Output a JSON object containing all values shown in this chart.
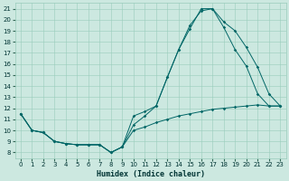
{
  "xlabel": "Humidex (Indice chaleur)",
  "bg_color": "#cce8e0",
  "line_color": "#006666",
  "grid_color": "#99ccbb",
  "xlim": [
    -0.5,
    23.5
  ],
  "ylim": [
    7.5,
    21.5
  ],
  "xticks": [
    0,
    1,
    2,
    3,
    4,
    5,
    6,
    7,
    8,
    9,
    10,
    11,
    12,
    13,
    14,
    15,
    16,
    17,
    18,
    19,
    20,
    21,
    22,
    23
  ],
  "yticks": [
    8,
    9,
    10,
    11,
    12,
    13,
    14,
    15,
    16,
    17,
    18,
    19,
    20,
    21
  ],
  "line1_x": [
    0,
    1,
    2,
    3,
    4,
    5,
    6,
    7,
    8,
    9,
    10,
    11,
    12,
    13,
    14,
    15,
    16,
    17,
    18,
    19,
    20,
    21,
    22,
    23
  ],
  "line1_y": [
    11.5,
    10.0,
    9.8,
    9.0,
    8.8,
    8.7,
    8.7,
    8.7,
    8.0,
    8.5,
    10.0,
    10.3,
    10.7,
    11.0,
    11.3,
    11.5,
    11.7,
    11.9,
    12.0,
    12.1,
    12.2,
    12.3,
    12.2,
    12.2
  ],
  "line2_x": [
    0,
    1,
    2,
    3,
    4,
    5,
    6,
    7,
    8,
    9,
    10,
    11,
    12,
    13,
    14,
    15,
    16,
    17,
    18,
    19,
    20,
    21,
    22,
    23
  ],
  "line2_y": [
    11.5,
    10.0,
    9.8,
    9.0,
    8.8,
    8.7,
    8.7,
    8.7,
    8.0,
    8.5,
    10.5,
    11.3,
    12.2,
    14.8,
    17.3,
    19.2,
    21.0,
    21.0,
    19.3,
    17.3,
    15.8,
    13.3,
    12.2,
    12.2
  ],
  "line3_x": [
    0,
    1,
    2,
    3,
    4,
    5,
    6,
    7,
    8,
    9,
    10,
    11,
    12,
    13,
    14,
    15,
    16,
    17,
    18,
    19,
    20,
    21,
    22,
    23
  ],
  "line3_y": [
    11.5,
    10.0,
    9.8,
    9.0,
    8.8,
    8.7,
    8.7,
    8.7,
    8.0,
    8.5,
    11.3,
    11.7,
    12.2,
    14.8,
    17.3,
    19.5,
    20.8,
    21.0,
    19.8,
    19.0,
    17.5,
    15.7,
    13.3,
    12.2
  ]
}
